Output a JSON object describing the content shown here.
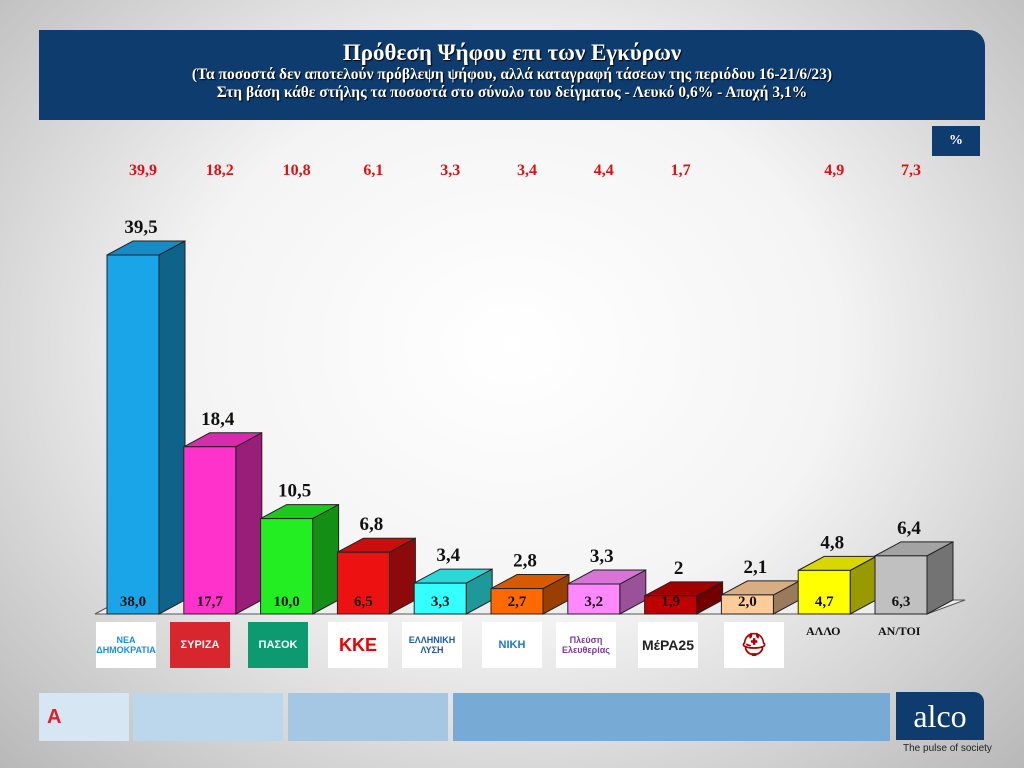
{
  "header": {
    "title": "Πρόθεση Ψήφου επι των Εγκύρων",
    "subtitle1": "(Τα ποσοστά δεν αποτελούν πρόβλεψη ψήφου, αλλά καταγραφή τάσεων της περιόδου  16-21/6/23)",
    "subtitle2": "Στη βάση κάθε στήλης τα ποσοστά στο σύνολο του δείγματος - Λευκό 0,6% - Αποχή 3,1%"
  },
  "unit_badge": "%",
  "chart_data": {
    "type": "bar",
    "ylim": [
      0,
      40
    ],
    "grid": false,
    "categories": [
      "ΝΔ",
      "ΣΥΡΙΖΑ",
      "ΠΑΣΟΚ",
      "ΚΚΕ",
      "ΕΛΛΗΝΙΚΗ ΛΥΣΗ",
      "ΝΙΚΗ",
      "Πλεύση Ελευθερίας",
      "ΜέΡΑ25",
      "Σπαρτιάτες",
      "ΑΛΛΟ",
      "ΑΝ/ΤΟΙ"
    ],
    "series": [
      {
        "role": "bar height (valid votes)",
        "values": [
          "39,5",
          "18,4",
          "10,5",
          "6,8",
          "3,4",
          "2,8",
          "3,3",
          "2",
          "2,1",
          "4,8",
          "6,4"
        ]
      },
      {
        "role": "in-bar (total sample)",
        "values": [
          "38,0",
          "17,7",
          "10,0",
          "6,5",
          "3,3",
          "2,7",
          "3,2",
          "1,9",
          "2,0",
          "4,7",
          "6,3"
        ]
      },
      {
        "role": "top row (red)",
        "values": [
          "39,9",
          "18,2",
          "10,8",
          "6,1",
          "3,3",
          "3,4",
          "4,4",
          "1,7",
          "",
          "4,9",
          "7,3"
        ]
      }
    ],
    "colors": [
      "#1aa5e8",
      "#ff33cc",
      "#22ee22",
      "#ee1111",
      "#33ffff",
      "#ff6a00",
      "#ff88ff",
      "#c00000",
      "#ffcc99",
      "#ffff00",
      "#c0c0c0"
    ]
  },
  "logos": {
    "nd": "ΝΕΑ ΔΗΜΟΚΡΑΤΙΑ",
    "syriza": "ΣΥΡΙΖΑ",
    "pasok": "ΠΑΣΟΚ",
    "kke": "ΚΚΕ",
    "el": "ΕΛΛΗΝΙΚΗ ΛΥΣΗ",
    "niki": "ΝΙΚΗ",
    "pe": "Πλεύση Ελευθερίας",
    "mera": "ΜέΡΑ25",
    "allo": "ΑΛΛΟ",
    "antoi": "ΑΝ/ΤΟΙ",
    "alco": "alco",
    "alco_tag": "The pulse of society"
  }
}
